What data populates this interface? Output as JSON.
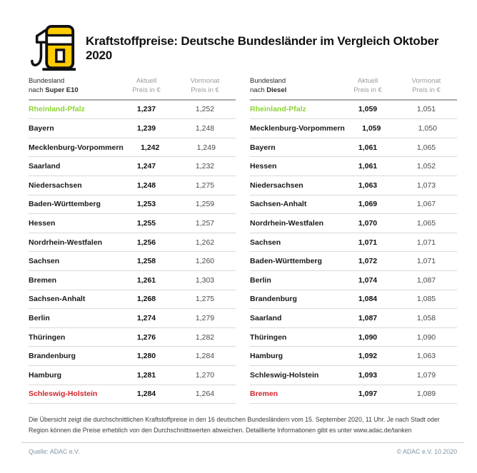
{
  "header": {
    "title": "Kraftstoffpreise: Deutsche Bundesländer im Vergleich Oktober 2020"
  },
  "colors": {
    "adac_yellow": "#FFCC00",
    "cheapest_green": "#8CD430",
    "most_expensive_red": "#D2232A",
    "header_gray": "#9B9B9B",
    "footer_gray_blue": "#7F95A5"
  },
  "tables": [
    {
      "head": {
        "col1_line1": "Bundesland",
        "col1_line2_prefix": "nach ",
        "col1_line2_bold": "Super E10",
        "col2_line1": "Aktuell",
        "col2_line2": "Preis in €",
        "col3_line1": "Vormonat",
        "col3_line2": "Preis in €"
      },
      "rows": [
        {
          "name": "Rheinland-Pfalz",
          "aktuell": "1,237",
          "vormonat": "1,252",
          "highlight": "green"
        },
        {
          "name": "Bayern",
          "aktuell": "1,239",
          "vormonat": "1,248",
          "highlight": ""
        },
        {
          "name": "Mecklenburg-Vorpommern",
          "aktuell": "1,242",
          "vormonat": "1,249",
          "highlight": ""
        },
        {
          "name": "Saarland",
          "aktuell": "1,247",
          "vormonat": "1,232",
          "highlight": ""
        },
        {
          "name": "Niedersachsen",
          "aktuell": "1,248",
          "vormonat": "1,275",
          "highlight": ""
        },
        {
          "name": "Baden-Württemberg",
          "aktuell": "1,253",
          "vormonat": "1,259",
          "highlight": ""
        },
        {
          "name": "Hessen",
          "aktuell": "1,255",
          "vormonat": "1,257",
          "highlight": ""
        },
        {
          "name": "Nordrhein-Westfalen",
          "aktuell": "1,256",
          "vormonat": "1,262",
          "highlight": ""
        },
        {
          "name": "Sachsen",
          "aktuell": "1,258",
          "vormonat": "1,260",
          "highlight": ""
        },
        {
          "name": "Bremen",
          "aktuell": "1,261",
          "vormonat": "1,303",
          "highlight": ""
        },
        {
          "name": "Sachsen-Anhalt",
          "aktuell": "1,268",
          "vormonat": "1,275",
          "highlight": ""
        },
        {
          "name": "Berlin",
          "aktuell": "1,274",
          "vormonat": "1,279",
          "highlight": ""
        },
        {
          "name": "Thüringen",
          "aktuell": "1,276",
          "vormonat": "1,282",
          "highlight": ""
        },
        {
          "name": "Brandenburg",
          "aktuell": "1,280",
          "vormonat": "1,284",
          "highlight": ""
        },
        {
          "name": "Hamburg",
          "aktuell": "1,281",
          "vormonat": "1,270",
          "highlight": ""
        },
        {
          "name": "Schleswig-Holstein",
          "aktuell": "1,284",
          "vormonat": "1,264",
          "highlight": "red"
        }
      ]
    },
    {
      "head": {
        "col1_line1": "Bundesland",
        "col1_line2_prefix": "nach ",
        "col1_line2_bold": "Diesel",
        "col2_line1": "Aktuell",
        "col2_line2": "Preis in €",
        "col3_line1": "Vormonat",
        "col3_line2": "Preis in €"
      },
      "rows": [
        {
          "name": "Rheinland-Pfalz",
          "aktuell": "1,059",
          "vormonat": "1,051",
          "highlight": "green"
        },
        {
          "name": "Mecklenburg-Vorpommern",
          "aktuell": "1,059",
          "vormonat": "1,050",
          "highlight": ""
        },
        {
          "name": "Bayern",
          "aktuell": "1,061",
          "vormonat": "1,065",
          "highlight": ""
        },
        {
          "name": "Hessen",
          "aktuell": "1,061",
          "vormonat": "1,052",
          "highlight": ""
        },
        {
          "name": "Niedersachsen",
          "aktuell": "1,063",
          "vormonat": "1,073",
          "highlight": ""
        },
        {
          "name": "Sachsen-Anhalt",
          "aktuell": "1,069",
          "vormonat": "1,067",
          "highlight": ""
        },
        {
          "name": "Nordrhein-Westfalen",
          "aktuell": "1,070",
          "vormonat": "1,065",
          "highlight": ""
        },
        {
          "name": "Sachsen",
          "aktuell": "1,071",
          "vormonat": "1,071",
          "highlight": ""
        },
        {
          "name": "Baden-Württemberg",
          "aktuell": "1,072",
          "vormonat": "1,071",
          "highlight": ""
        },
        {
          "name": "Berlin",
          "aktuell": "1,074",
          "vormonat": "1,087",
          "highlight": ""
        },
        {
          "name": "Brandenburg",
          "aktuell": "1,084",
          "vormonat": "1,085",
          "highlight": ""
        },
        {
          "name": "Saarland",
          "aktuell": "1,087",
          "vormonat": "1,058",
          "highlight": ""
        },
        {
          "name": "Thüringen",
          "aktuell": "1,090",
          "vormonat": "1,090",
          "highlight": ""
        },
        {
          "name": "Hamburg",
          "aktuell": "1,092",
          "vormonat": "1,063",
          "highlight": ""
        },
        {
          "name": "Schleswig-Holstein",
          "aktuell": "1,093",
          "vormonat": "1,079",
          "highlight": ""
        },
        {
          "name": "Bremen",
          "aktuell": "1,097",
          "vormonat": "1,089",
          "highlight": "red"
        }
      ]
    }
  ],
  "chart_data": [
    {
      "type": "table",
      "title": "Bundesland nach Super E10",
      "columns": [
        "Bundesland nach Super E10",
        "Aktuell Preis in €",
        "Vormonat Preis in €"
      ],
      "rows": [
        [
          "Rheinland-Pfalz",
          1.237,
          1.252
        ],
        [
          "Bayern",
          1.239,
          1.248
        ],
        [
          "Mecklenburg-Vorpommern",
          1.242,
          1.249
        ],
        [
          "Saarland",
          1.247,
          1.232
        ],
        [
          "Niedersachsen",
          1.248,
          1.275
        ],
        [
          "Baden-Württemberg",
          1.253,
          1.259
        ],
        [
          "Hessen",
          1.255,
          1.257
        ],
        [
          "Nordrhein-Westfalen",
          1.256,
          1.262
        ],
        [
          "Sachsen",
          1.258,
          1.26
        ],
        [
          "Bremen",
          1.261,
          1.303
        ],
        [
          "Sachsen-Anhalt",
          1.268,
          1.275
        ],
        [
          "Berlin",
          1.274,
          1.279
        ],
        [
          "Thüringen",
          1.276,
          1.282
        ],
        [
          "Brandenburg",
          1.28,
          1.284
        ],
        [
          "Hamburg",
          1.281,
          1.27
        ],
        [
          "Schleswig-Holstein",
          1.284,
          1.264
        ]
      ],
      "highlights": {
        "cheapest_green": "Rheinland-Pfalz",
        "most_expensive_red": "Schleswig-Holstein"
      }
    },
    {
      "type": "table",
      "title": "Bundesland nach Diesel",
      "columns": [
        "Bundesland nach Diesel",
        "Aktuell Preis in €",
        "Vormonat Preis in €"
      ],
      "rows": [
        [
          "Rheinland-Pfalz",
          1.059,
          1.051
        ],
        [
          "Mecklenburg-Vorpommern",
          1.059,
          1.05
        ],
        [
          "Bayern",
          1.061,
          1.065
        ],
        [
          "Hessen",
          1.061,
          1.052
        ],
        [
          "Niedersachsen",
          1.063,
          1.073
        ],
        [
          "Sachsen-Anhalt",
          1.069,
          1.067
        ],
        [
          "Nordrhein-Westfalen",
          1.07,
          1.065
        ],
        [
          "Sachsen",
          1.071,
          1.071
        ],
        [
          "Baden-Württemberg",
          1.072,
          1.071
        ],
        [
          "Berlin",
          1.074,
          1.087
        ],
        [
          "Brandenburg",
          1.084,
          1.085
        ],
        [
          "Saarland",
          1.087,
          1.058
        ],
        [
          "Thüringen",
          1.09,
          1.09
        ],
        [
          "Hamburg",
          1.092,
          1.063
        ],
        [
          "Schleswig-Holstein",
          1.093,
          1.079
        ],
        [
          "Bremen",
          1.097,
          1.089
        ]
      ],
      "highlights": {
        "cheapest_green": "Rheinland-Pfalz",
        "most_expensive_red": "Bremen"
      }
    }
  ],
  "footnote": {
    "text": "Die Übersicht zeigt die durchschnittlichen Kraftstoffpreise in den 16 deutschen Bundesländern vom 15. September 2020, 11 Uhr.  Je nach Stadt oder Region können die Preise erheblich von den Durchschnittswerten abweichen. Detaillierte Informationen gibt es unter www.adac.de/tanken"
  },
  "footer": {
    "source": "Quelle: ADAC e.V.",
    "copyright": "© ADAC e.V. 10.2020"
  }
}
